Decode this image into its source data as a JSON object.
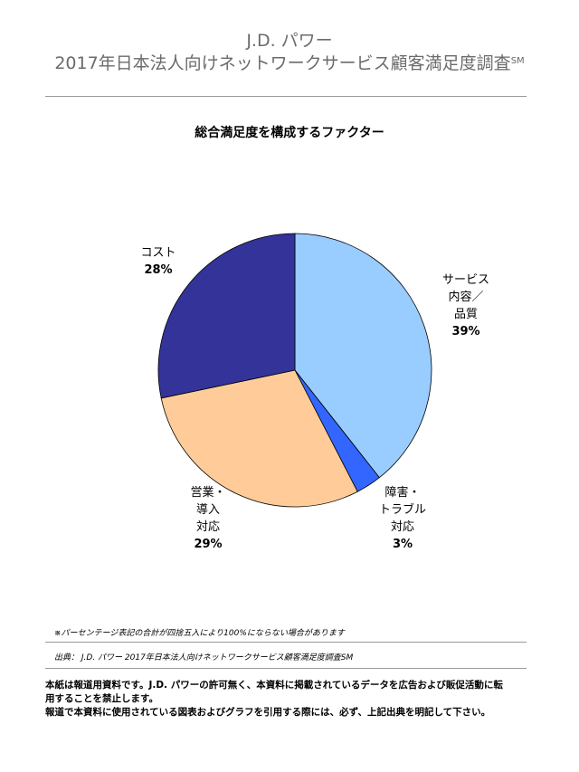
{
  "header": {
    "brand": "J.D. パワー",
    "title": "2017年日本法人向けネットワークサービス顧客満足度調査",
    "title_mark": "SM"
  },
  "chart_data": {
    "type": "pie",
    "title": "総合満足度を構成するファクター",
    "slices": [
      {
        "label_lines": [
          "サービス",
          "内容／",
          "品質"
        ],
        "pct_label": "39%",
        "value": 39,
        "color": "#99ccff"
      },
      {
        "label_lines": [
          "障害・",
          "トラブル",
          "対応"
        ],
        "pct_label": "3%",
        "value": 3,
        "color": "#3366ff"
      },
      {
        "label_lines": [
          "営業・",
          "導入",
          "対応"
        ],
        "pct_label": "29%",
        "value": 29,
        "color": "#ffcc99"
      },
      {
        "label_lines": [
          "コスト"
        ],
        "pct_label": "28%",
        "value": 28,
        "color": "#333399"
      }
    ]
  },
  "notes": {
    "rounding": "※パーセンテージ表記の合計が四捨五入により100%にならない場合があります",
    "source": "出典： J.D. パワー 2017年日本法人向けネットワークサービス顧客満足度調査SM"
  },
  "disclaimer": {
    "line1": "本紙は報道用資料です。J.D. パワーの許可無く、本資料に掲載されているデータを広告および販促活動に転",
    "line2": "用することを禁止します。",
    "line3": "報道で本資料に使用されている図表およびグラフを引用する際には、必ず、上記出典を明記して下さい。"
  }
}
